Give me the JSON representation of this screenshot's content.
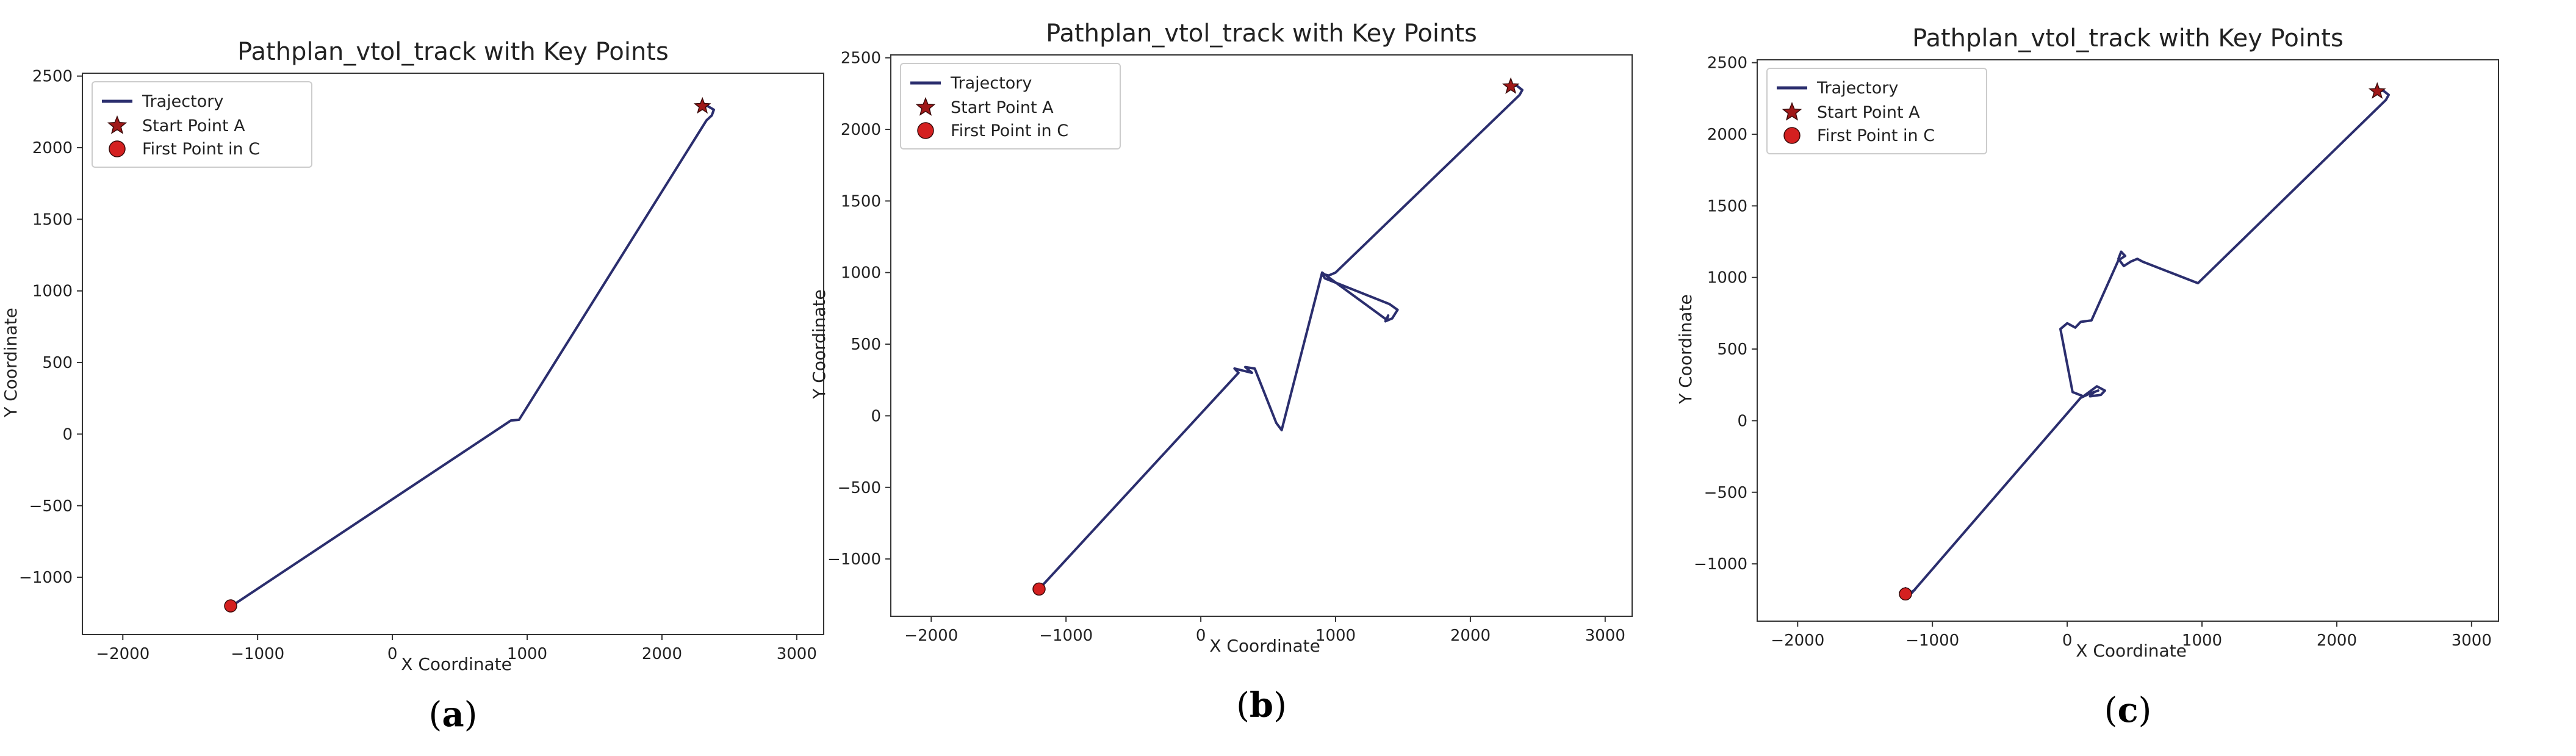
{
  "chart_data": [
    {
      "type": "line",
      "title": "Pathplan_vtol_track with Key Points",
      "xlabel": "X Coordinate",
      "ylabel": "Y Coordinate",
      "xlim": [
        -2300,
        3200
      ],
      "ylim": [
        -1400,
        2520
      ],
      "xticks": [
        -2000,
        -1000,
        0,
        1000,
        2000,
        3000
      ],
      "yticks": [
        -1000,
        -500,
        0,
        500,
        1000,
        1500,
        2000,
        2500
      ],
      "legend_position": "top-left",
      "legend": [
        "Trajectory",
        "Start Point A",
        "First Point in C"
      ],
      "series": [
        {
          "name": "Trajectory",
          "color": "#2b2e6e",
          "x": [
            2300,
            2340,
            2385,
            2370,
            2330,
            940,
            880,
            -1160,
            -1200
          ],
          "y": [
            2290,
            2290,
            2265,
            2225,
            2190,
            100,
            95,
            -1180,
            -1200
          ]
        }
      ],
      "points": [
        {
          "name": "Start Point A",
          "marker": "star",
          "color": "#a01818",
          "x": 2300,
          "y": 2290
        },
        {
          "name": "First Point in C",
          "marker": "circle",
          "color": "#d42020",
          "x": -1200,
          "y": -1200
        }
      ],
      "caption_letter": "a",
      "caption_open": "(",
      "caption_close": ")"
    },
    {
      "type": "line",
      "title": "Pathplan_vtol_track with Key Points",
      "xlabel": "X Coordinate",
      "ylabel": "Y Coordinate",
      "xlim": [
        -2300,
        3200
      ],
      "ylim": [
        -1400,
        2520
      ],
      "xticks": [
        -2000,
        -1000,
        0,
        1000,
        2000,
        3000
      ],
      "yticks": [
        -1000,
        -500,
        0,
        500,
        1000,
        1500,
        2000,
        2500
      ],
      "legend_position": "top-left",
      "legend": [
        "Trajectory",
        "Start Point A",
        "First Point in C"
      ],
      "series": [
        {
          "name": "Trajectory",
          "color": "#2b2e6e",
          "x": [
            2300,
            2345,
            2385,
            2365,
            1000,
            950,
            900,
            920,
            1400,
            1460,
            1420,
            1370,
            1390,
            1380,
            900,
            600,
            560,
            400,
            330,
            380,
            250,
            280,
            -1200
          ],
          "y": [
            2300,
            2305,
            2275,
            2240,
            1000,
            980,
            990,
            960,
            780,
            740,
            680,
            660,
            700,
            670,
            1000,
            -100,
            -50,
            330,
            340,
            300,
            330,
            300,
            -1210
          ]
        }
      ],
      "points": [
        {
          "name": "Start Point A",
          "marker": "star",
          "color": "#a01818",
          "x": 2300,
          "y": 2300
        },
        {
          "name": "First Point in C",
          "marker": "circle",
          "color": "#d42020",
          "x": -1200,
          "y": -1210
        }
      ],
      "caption_letter": "b",
      "caption_open": "(",
      "caption_close": ")"
    },
    {
      "type": "line",
      "title": "Pathplan_vtol_track with Key Points",
      "xlabel": "X Coordinate",
      "ylabel": "Y Coordinate",
      "xlim": [
        -2300,
        3200
      ],
      "ylim": [
        -1400,
        2520
      ],
      "xticks": [
        -2000,
        -1000,
        0,
        1000,
        2000,
        3000
      ],
      "yticks": [
        -1000,
        -500,
        0,
        500,
        1000,
        1500,
        2000,
        2500
      ],
      "legend_position": "top-left",
      "legend": [
        "Trajectory",
        "Start Point A",
        "First Point in C"
      ],
      "series": [
        {
          "name": "Trajectory",
          "color": "#2b2e6e",
          "x": [
            2300,
            2345,
            2385,
            2365,
            970,
            560,
            520,
            470,
            420,
            380,
            400,
            430,
            380,
            180,
            100,
            60,
            0,
            -50,
            40,
            120,
            220,
            280,
            250,
            170,
            200,
            230,
            170,
            100,
            -1150,
            -1200,
            -1240,
            -1200,
            -1160,
            -1130
          ],
          "y": [
            2300,
            2305,
            2275,
            2240,
            960,
            1110,
            1130,
            1110,
            1080,
            1130,
            1180,
            1150,
            1120,
            700,
            690,
            650,
            680,
            640,
            200,
            170,
            240,
            210,
            180,
            170,
            200,
            210,
            190,
            160,
            -1200,
            -1170,
            -1200,
            -1230,
            -1200,
            -1180
          ]
        }
      ],
      "points": [
        {
          "name": "Start Point A",
          "marker": "star",
          "color": "#a01818",
          "x": 2300,
          "y": 2300
        },
        {
          "name": "First Point in C",
          "marker": "circle",
          "color": "#d42020",
          "x": -1200,
          "y": -1210
        }
      ],
      "caption_letter": "c",
      "caption_open": "(",
      "caption_close": ")"
    }
  ]
}
